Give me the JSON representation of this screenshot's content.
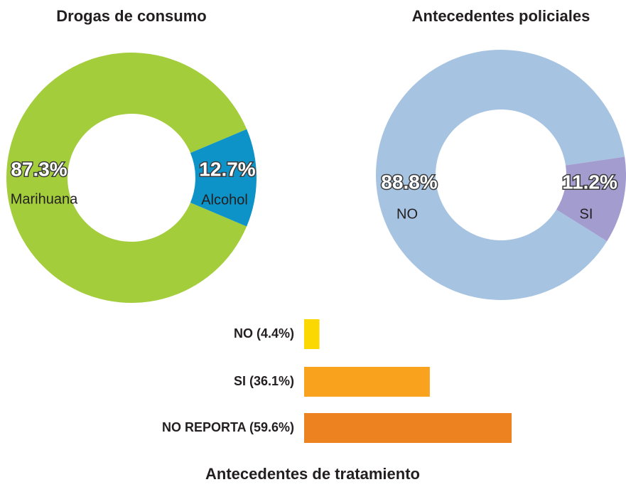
{
  "chart_data": [
    {
      "type": "pie",
      "donut": true,
      "title": "Drogas de consumo",
      "categories": [
        "Marihuana",
        "Alcohol"
      ],
      "values": [
        87.3,
        12.7
      ],
      "value_labels": [
        "87.3%",
        "12.7%"
      ],
      "colors": [
        "#a3cd3b",
        "#0e93c8"
      ]
    },
    {
      "type": "pie",
      "donut": true,
      "title": "Antecedentes policiales",
      "categories": [
        "NO",
        "SI"
      ],
      "values": [
        88.8,
        11.2
      ],
      "value_labels": [
        "88.8%",
        "11.2%"
      ],
      "colors": [
        "#a7c3e2",
        "#a29ccf"
      ]
    },
    {
      "type": "bar",
      "orientation": "horizontal",
      "title": "Antecedentes de tratamiento",
      "categories": [
        "NO (4.4%)",
        "SI (36.1%)",
        "NO REPORTA (59.6%)"
      ],
      "values": [
        4.4,
        36.1,
        59.6
      ],
      "colors": [
        "#fcd803",
        "#f8a21e",
        "#ec8220"
      ]
    }
  ]
}
